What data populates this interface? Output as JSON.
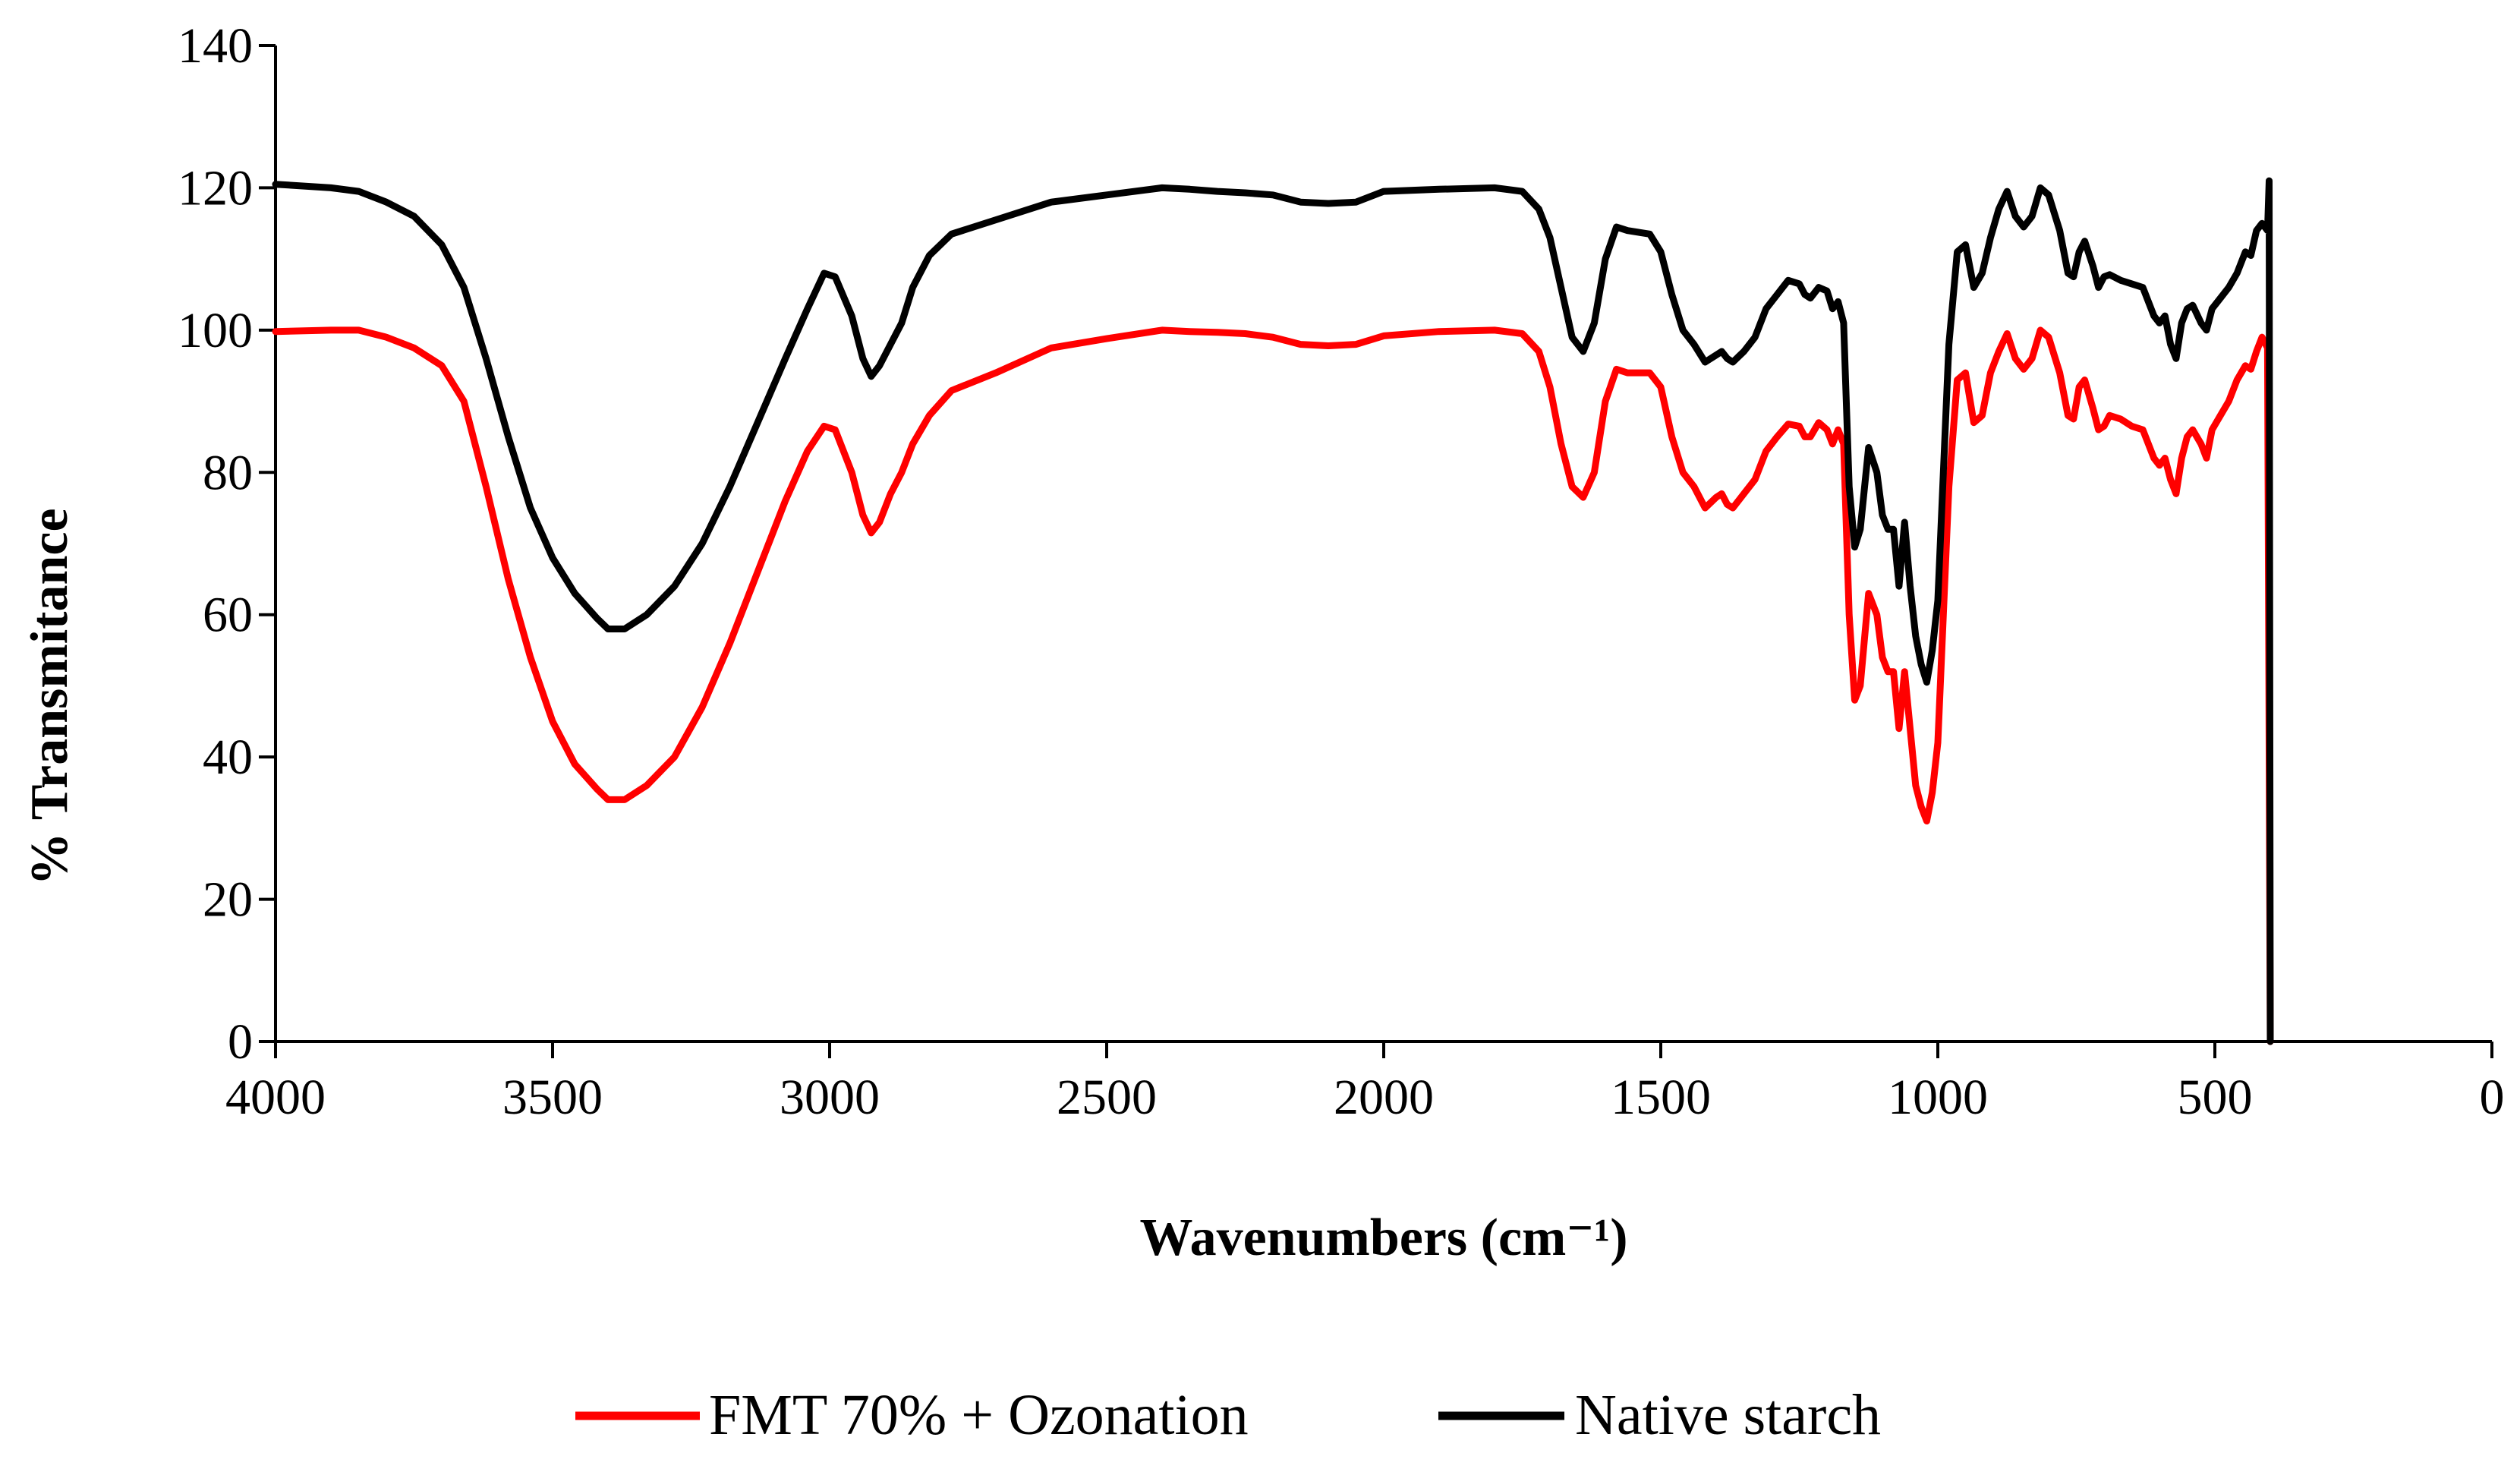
{
  "chart_data": {
    "type": "line",
    "title": "",
    "xlabel": "Wavenumbers (cm⁻¹)",
    "ylabel": "% Transmitance",
    "xlim": [
      4000,
      0
    ],
    "ylim": [
      0,
      140
    ],
    "x_ticks": [
      4000,
      3500,
      3000,
      2500,
      2000,
      1500,
      1000,
      500,
      0
    ],
    "y_ticks": [
      0,
      20,
      40,
      60,
      80,
      100,
      120,
      140
    ],
    "x_tick_labels": [
      "4000",
      "3500",
      "3000",
      "2500",
      "2000",
      "1500",
      "1000",
      "500",
      "0"
    ],
    "y_tick_labels": [
      "0",
      "20",
      "40",
      "60",
      "80",
      "100",
      "120",
      "140"
    ],
    "grid": false,
    "legend_position": "bottom",
    "series": [
      {
        "name": "FMT 70% + Ozonation",
        "color": "#ff0000",
        "points": [
          [
            4000,
            99.8
          ],
          [
            3900,
            100
          ],
          [
            3850,
            100
          ],
          [
            3800,
            99
          ],
          [
            3750,
            97.5
          ],
          [
            3700,
            95
          ],
          [
            3660,
            90
          ],
          [
            3620,
            78
          ],
          [
            3580,
            65
          ],
          [
            3540,
            54
          ],
          [
            3500,
            45
          ],
          [
            3460,
            39
          ],
          [
            3420,
            35.5
          ],
          [
            3400,
            34
          ],
          [
            3370,
            34
          ],
          [
            3330,
            36
          ],
          [
            3280,
            40
          ],
          [
            3230,
            47
          ],
          [
            3180,
            56
          ],
          [
            3130,
            66
          ],
          [
            3080,
            76
          ],
          [
            3040,
            83
          ],
          [
            3010,
            86.5
          ],
          [
            2990,
            86
          ],
          [
            2960,
            80
          ],
          [
            2940,
            74
          ],
          [
            2925,
            71.5
          ],
          [
            2910,
            73
          ],
          [
            2890,
            77
          ],
          [
            2870,
            80
          ],
          [
            2850,
            84
          ],
          [
            2820,
            88
          ],
          [
            2780,
            91.5
          ],
          [
            2700,
            94
          ],
          [
            2600,
            97.5
          ],
          [
            2500,
            98.8
          ],
          [
            2400,
            100
          ],
          [
            2350,
            99.8
          ],
          [
            2300,
            99.7
          ],
          [
            2250,
            99.5
          ],
          [
            2200,
            99
          ],
          [
            2150,
            98
          ],
          [
            2100,
            97.8
          ],
          [
            2050,
            98
          ],
          [
            2000,
            99.2
          ],
          [
            1900,
            99.8
          ],
          [
            1800,
            100
          ],
          [
            1750,
            99.5
          ],
          [
            1720,
            97
          ],
          [
            1700,
            92
          ],
          [
            1680,
            84
          ],
          [
            1660,
            78
          ],
          [
            1640,
            76.5
          ],
          [
            1620,
            80
          ],
          [
            1600,
            90
          ],
          [
            1580,
            94.5
          ],
          [
            1560,
            94
          ],
          [
            1520,
            94
          ],
          [
            1500,
            92
          ],
          [
            1480,
            85
          ],
          [
            1460,
            80
          ],
          [
            1440,
            78
          ],
          [
            1420,
            75
          ],
          [
            1400,
            76.5
          ],
          [
            1390,
            77
          ],
          [
            1380,
            75.5
          ],
          [
            1370,
            75
          ],
          [
            1350,
            77
          ],
          [
            1330,
            79
          ],
          [
            1310,
            83
          ],
          [
            1290,
            85
          ],
          [
            1270,
            86.8
          ],
          [
            1250,
            86.5
          ],
          [
            1240,
            85
          ],
          [
            1230,
            85
          ],
          [
            1215,
            87
          ],
          [
            1200,
            86
          ],
          [
            1190,
            84
          ],
          [
            1180,
            86
          ],
          [
            1170,
            84
          ],
          [
            1160,
            60
          ],
          [
            1150,
            48
          ],
          [
            1140,
            50
          ],
          [
            1125,
            63
          ],
          [
            1110,
            60
          ],
          [
            1100,
            54
          ],
          [
            1090,
            52
          ],
          [
            1080,
            52
          ],
          [
            1070,
            44
          ],
          [
            1060,
            52
          ],
          [
            1050,
            44
          ],
          [
            1040,
            36
          ],
          [
            1030,
            33
          ],
          [
            1020,
            31
          ],
          [
            1010,
            35
          ],
          [
            1000,
            42
          ],
          [
            990,
            60
          ],
          [
            980,
            78
          ],
          [
            965,
            93
          ],
          [
            950,
            94
          ],
          [
            935,
            87
          ],
          [
            920,
            88
          ],
          [
            905,
            94
          ],
          [
            890,
            97
          ],
          [
            875,
            99.5
          ],
          [
            860,
            96
          ],
          [
            845,
            94.5
          ],
          [
            830,
            96
          ],
          [
            815,
            100
          ],
          [
            800,
            99
          ],
          [
            780,
            94
          ],
          [
            765,
            88
          ],
          [
            755,
            87.5
          ],
          [
            745,
            92
          ],
          [
            735,
            93
          ],
          [
            720,
            89
          ],
          [
            710,
            86
          ],
          [
            700,
            86.5
          ],
          [
            690,
            88
          ],
          [
            670,
            87.5
          ],
          [
            650,
            86.5
          ],
          [
            630,
            86
          ],
          [
            610,
            82
          ],
          [
            600,
            81
          ],
          [
            590,
            82
          ],
          [
            580,
            79
          ],
          [
            570,
            77
          ],
          [
            560,
            82
          ],
          [
            550,
            85
          ],
          [
            540,
            86
          ],
          [
            525,
            84
          ],
          [
            515,
            82
          ],
          [
            505,
            86
          ],
          [
            490,
            88
          ],
          [
            475,
            90
          ],
          [
            460,
            93
          ],
          [
            445,
            95
          ],
          [
            435,
            94.5
          ],
          [
            425,
            97
          ],
          [
            415,
            99
          ],
          [
            405,
            97.5
          ],
          [
            400,
            0
          ]
        ]
      },
      {
        "name": "Native starch",
        "color": "#000000",
        "points": [
          [
            4000,
            120.5
          ],
          [
            3900,
            120
          ],
          [
            3850,
            119.5
          ],
          [
            3800,
            118
          ],
          [
            3750,
            116
          ],
          [
            3700,
            112
          ],
          [
            3660,
            106
          ],
          [
            3620,
            96
          ],
          [
            3580,
            85
          ],
          [
            3540,
            75
          ],
          [
            3500,
            68
          ],
          [
            3460,
            63
          ],
          [
            3420,
            59.5
          ],
          [
            3400,
            58
          ],
          [
            3370,
            58
          ],
          [
            3330,
            60
          ],
          [
            3280,
            64
          ],
          [
            3230,
            70
          ],
          [
            3180,
            78
          ],
          [
            3130,
            87
          ],
          [
            3080,
            96
          ],
          [
            3040,
            103
          ],
          [
            3010,
            108
          ],
          [
            2990,
            107.5
          ],
          [
            2960,
            102
          ],
          [
            2940,
            96
          ],
          [
            2925,
            93.5
          ],
          [
            2910,
            95
          ],
          [
            2890,
            98
          ],
          [
            2870,
            101
          ],
          [
            2850,
            106
          ],
          [
            2820,
            110.5
          ],
          [
            2780,
            113.5
          ],
          [
            2700,
            115.5
          ],
          [
            2600,
            118
          ],
          [
            2500,
            119
          ],
          [
            2400,
            120
          ],
          [
            2350,
            119.8
          ],
          [
            2300,
            119.5
          ],
          [
            2250,
            119.3
          ],
          [
            2200,
            119
          ],
          [
            2150,
            118
          ],
          [
            2100,
            117.8
          ],
          [
            2050,
            118
          ],
          [
            2000,
            119.5
          ],
          [
            1900,
            119.8
          ],
          [
            1800,
            120
          ],
          [
            1750,
            119.5
          ],
          [
            1720,
            117
          ],
          [
            1700,
            113
          ],
          [
            1680,
            106
          ],
          [
            1660,
            99
          ],
          [
            1640,
            97
          ],
          [
            1620,
            101
          ],
          [
            1600,
            110
          ],
          [
            1580,
            114.5
          ],
          [
            1560,
            114
          ],
          [
            1520,
            113.5
          ],
          [
            1500,
            111
          ],
          [
            1480,
            105
          ],
          [
            1460,
            100
          ],
          [
            1440,
            98
          ],
          [
            1420,
            95.5
          ],
          [
            1400,
            96.5
          ],
          [
            1390,
            97
          ],
          [
            1380,
            96
          ],
          [
            1370,
            95.5
          ],
          [
            1350,
            97
          ],
          [
            1330,
            99
          ],
          [
            1310,
            103
          ],
          [
            1290,
            105
          ],
          [
            1270,
            107
          ],
          [
            1250,
            106.5
          ],
          [
            1240,
            105
          ],
          [
            1230,
            104.5
          ],
          [
            1215,
            106
          ],
          [
            1200,
            105.5
          ],
          [
            1190,
            103
          ],
          [
            1180,
            104
          ],
          [
            1170,
            101
          ],
          [
            1160,
            78
          ],
          [
            1150,
            69.5
          ],
          [
            1140,
            72
          ],
          [
            1125,
            83.5
          ],
          [
            1110,
            80
          ],
          [
            1100,
            74
          ],
          [
            1090,
            72
          ],
          [
            1080,
            72
          ],
          [
            1070,
            64
          ],
          [
            1060,
            73
          ],
          [
            1050,
            64
          ],
          [
            1040,
            57
          ],
          [
            1030,
            53
          ],
          [
            1020,
            50.5
          ],
          [
            1010,
            55
          ],
          [
            1000,
            62
          ],
          [
            990,
            80
          ],
          [
            980,
            98
          ],
          [
            965,
            111
          ],
          [
            950,
            112
          ],
          [
            935,
            106
          ],
          [
            920,
            108
          ],
          [
            905,
            113
          ],
          [
            890,
            117
          ],
          [
            875,
            119.5
          ],
          [
            860,
            116
          ],
          [
            845,
            114.5
          ],
          [
            830,
            116
          ],
          [
            815,
            120
          ],
          [
            800,
            119
          ],
          [
            780,
            114
          ],
          [
            765,
            108
          ],
          [
            755,
            107.5
          ],
          [
            745,
            111
          ],
          [
            735,
            112.5
          ],
          [
            720,
            109
          ],
          [
            710,
            106
          ],
          [
            700,
            107.5
          ],
          [
            690,
            107.8
          ],
          [
            670,
            107
          ],
          [
            650,
            106.5
          ],
          [
            630,
            106
          ],
          [
            610,
            102
          ],
          [
            600,
            101
          ],
          [
            590,
            102
          ],
          [
            580,
            98
          ],
          [
            570,
            96
          ],
          [
            560,
            101
          ],
          [
            550,
            103
          ],
          [
            540,
            103.5
          ],
          [
            525,
            101
          ],
          [
            515,
            100
          ],
          [
            505,
            103
          ],
          [
            490,
            104.5
          ],
          [
            475,
            106
          ],
          [
            460,
            108
          ],
          [
            445,
            111
          ],
          [
            435,
            110.5
          ],
          [
            425,
            114
          ],
          [
            415,
            115
          ],
          [
            405,
            114
          ],
          [
            402,
            121
          ],
          [
            400,
            0
          ]
        ]
      }
    ]
  }
}
